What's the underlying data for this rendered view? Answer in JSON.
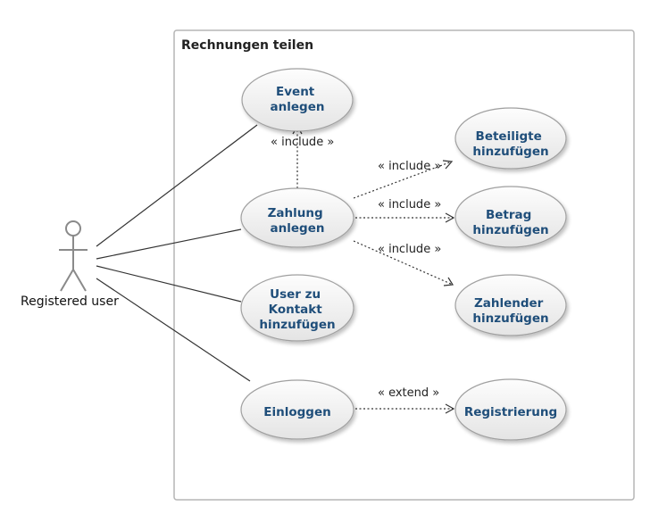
{
  "system_boundary": {
    "title": "Rechnungen teilen"
  },
  "actor": {
    "label": "Registered user"
  },
  "use_cases": {
    "event_anlegen": [
      "Event",
      "anlegen"
    ],
    "zahlung_anlegen": [
      "Zahlung",
      "anlegen"
    ],
    "user_zu_kontakt": [
      "User zu",
      "Kontakt",
      "hinzufügen"
    ],
    "einloggen": [
      "Einloggen"
    ],
    "beteiligte_hinzufuegen": [
      "Beteiligte",
      "hinzufügen"
    ],
    "betrag_hinzufuegen": [
      "Betrag",
      "hinzufügen"
    ],
    "zahlender_hinzufuegen": [
      "Zahlender",
      "hinzufügen"
    ],
    "registrierung": [
      "Registrierung"
    ]
  },
  "relations": {
    "include_event": "« include »",
    "include_beteiligte": "« include »",
    "include_betrag": "« include »",
    "include_zahlender": "« include »",
    "extend_registrierung": "« extend »"
  },
  "colors": {
    "ellipse_fill_top": "#fbfbfb",
    "ellipse_fill_bottom": "#e6e6e6",
    "ellipse_stroke": "#a0a0a0",
    "use_case_text": "#1f4e7a",
    "boundary_stroke": "#b5b5b5",
    "actor_stroke": "#8a8a8a",
    "line": "#333333"
  }
}
